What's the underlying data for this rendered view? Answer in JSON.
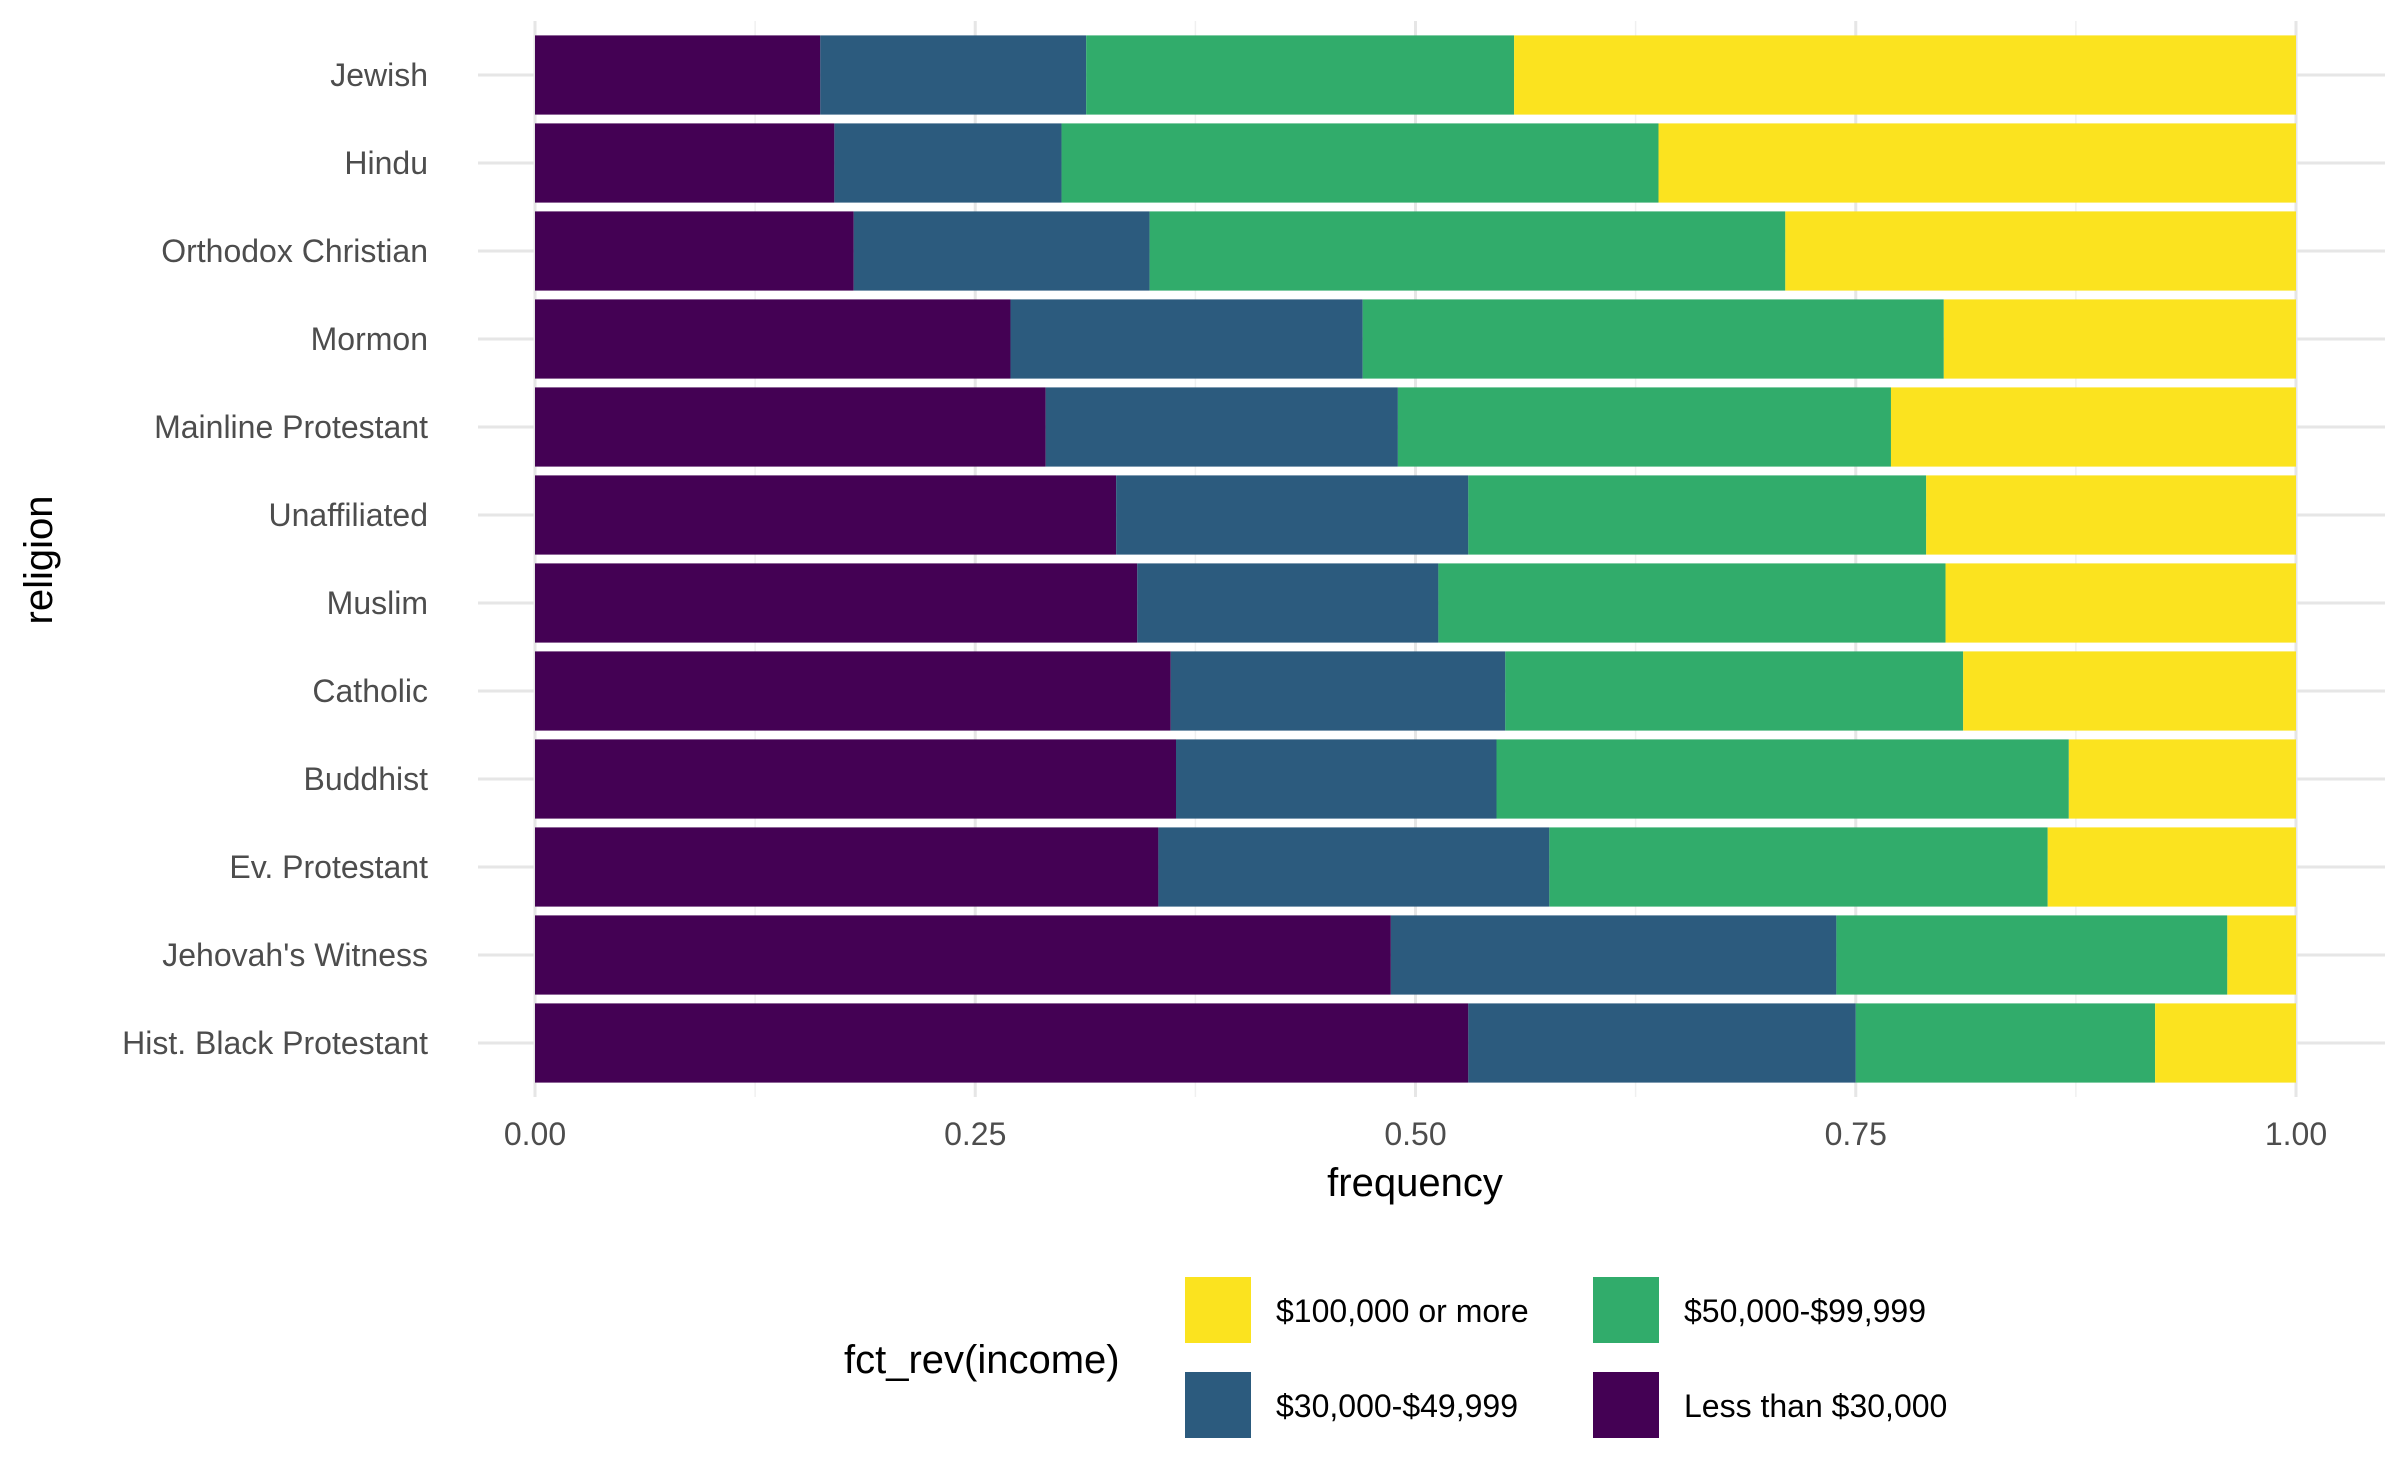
{
  "chart_data": {
    "type": "bar",
    "orientation": "horizontal",
    "stacked": true,
    "xlabel": "frequency",
    "ylabel": "religion",
    "xlim": [
      0,
      1
    ],
    "x_ticks": [
      "0.00",
      "0.25",
      "0.50",
      "0.75",
      "1.00"
    ],
    "grid": true,
    "legend_position": "bottom",
    "legend_title": "fct_rev(income)",
    "categories": [
      "Jewish",
      "Hindu",
      "Orthodox Christian",
      "Mormon",
      "Mainline Protestant",
      "Unaffiliated",
      "Muslim",
      "Catholic",
      "Buddhist",
      "Ev. Protestant",
      "Jehovah's Witness",
      "Hist. Black Protestant"
    ],
    "series": [
      {
        "name": "Less than $30,000",
        "color": "#440154",
        "values": [
          0.162,
          0.17,
          0.181,
          0.27,
          0.29,
          0.33,
          0.342,
          0.361,
          0.364,
          0.354,
          0.486,
          0.53
        ]
      },
      {
        "name": "$30,000-$49,999",
        "color": "#2c5b7e",
        "values": [
          0.151,
          0.129,
          0.168,
          0.2,
          0.2,
          0.2,
          0.171,
          0.19,
          0.182,
          0.222,
          0.253,
          0.22
        ]
      },
      {
        "name": "$50,000-$99,999",
        "color": "#31ac6b",
        "values": [
          0.243,
          0.339,
          0.361,
          0.33,
          0.28,
          0.26,
          0.288,
          0.26,
          0.325,
          0.283,
          0.222,
          0.17
        ]
      },
      {
        "name": "$100,000 or more",
        "color": "#fbe31f",
        "values": [
          0.444,
          0.362,
          0.29,
          0.2,
          0.23,
          0.21,
          0.199,
          0.189,
          0.129,
          0.141,
          0.039,
          0.08
        ]
      }
    ],
    "legend_order": [
      "$100,000 or more",
      "$50,000-$99,999",
      "$30,000-$49,999",
      "Less than $30,000"
    ]
  }
}
